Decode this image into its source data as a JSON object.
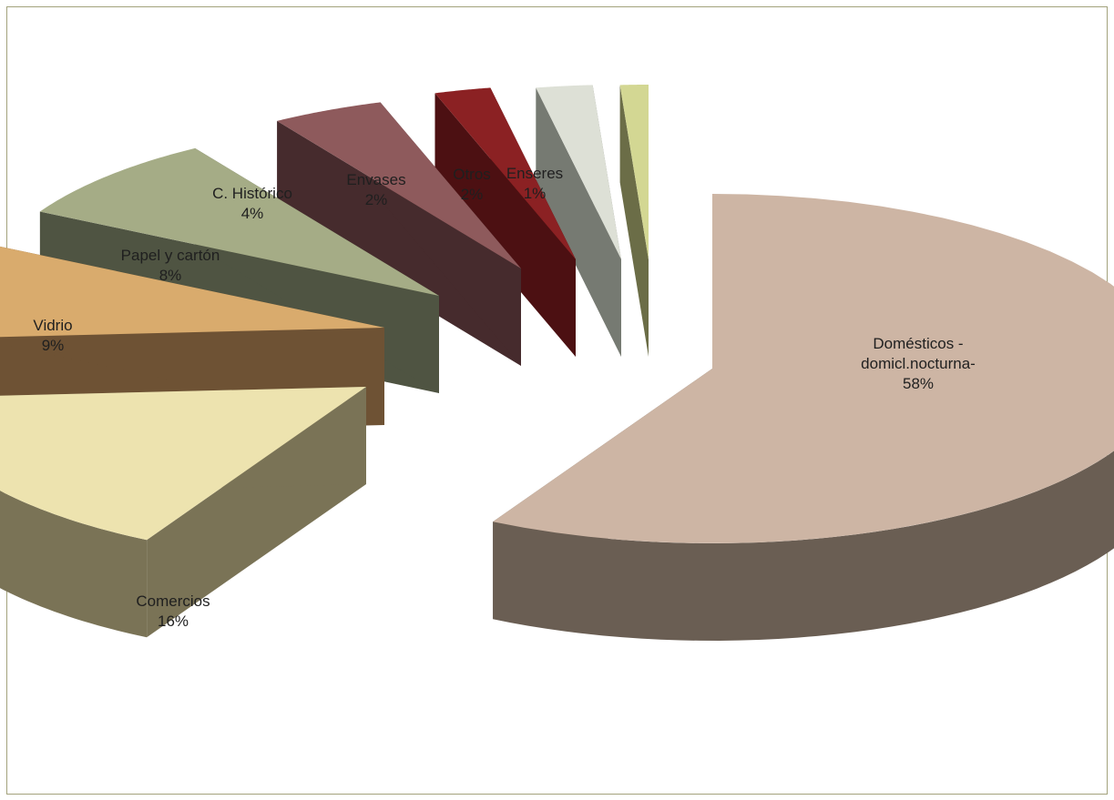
{
  "chart_data": {
    "type": "pie",
    "style": "3d-exploded",
    "legend": "none",
    "slices": [
      {
        "label": "Domésticos - domicl.nocturna-",
        "label_lines": [
          "Domésticos -",
          "domicl.nocturna-"
        ],
        "pct_label": "58%",
        "value": 58,
        "top_color": "#cdb5a4",
        "side_color": "#6a5e53"
      },
      {
        "label": "Comercios",
        "label_lines": [
          "Comercios"
        ],
        "pct_label": "16%",
        "value": 16,
        "top_color": "#ede3af",
        "side_color": "#7a7356"
      },
      {
        "label": "Vidrio",
        "label_lines": [
          "Vidrio"
        ],
        "pct_label": "9%",
        "value": 9,
        "top_color": "#d9ab6d",
        "side_color": "#6e5234"
      },
      {
        "label": "Papel y cartón",
        "label_lines": [
          "Papel y cartón"
        ],
        "pct_label": "8%",
        "value": 8,
        "top_color": "#a5ac86",
        "side_color": "#4f5442"
      },
      {
        "label": "C. Histórico",
        "label_lines": [
          "C. Histórico"
        ],
        "pct_label": "4%",
        "value": 4,
        "top_color": "#8e5a5c",
        "side_color": "#462b2d"
      },
      {
        "label": "Envases",
        "label_lines": [
          "Envases"
        ],
        "pct_label": "2%",
        "value": 2,
        "top_color": "#8b2123",
        "side_color": "#4c1012"
      },
      {
        "label": "Otros",
        "label_lines": [
          "Otros"
        ],
        "pct_label": "2%",
        "value": 2,
        "top_color": "#dde0d6",
        "side_color": "#767a72"
      },
      {
        "label": "Enseres",
        "label_lines": [
          "Enseres"
        ],
        "pct_label": "1%",
        "value": 1,
        "top_color": "#d3d793",
        "side_color": "#6b6d47"
      }
    ]
  }
}
